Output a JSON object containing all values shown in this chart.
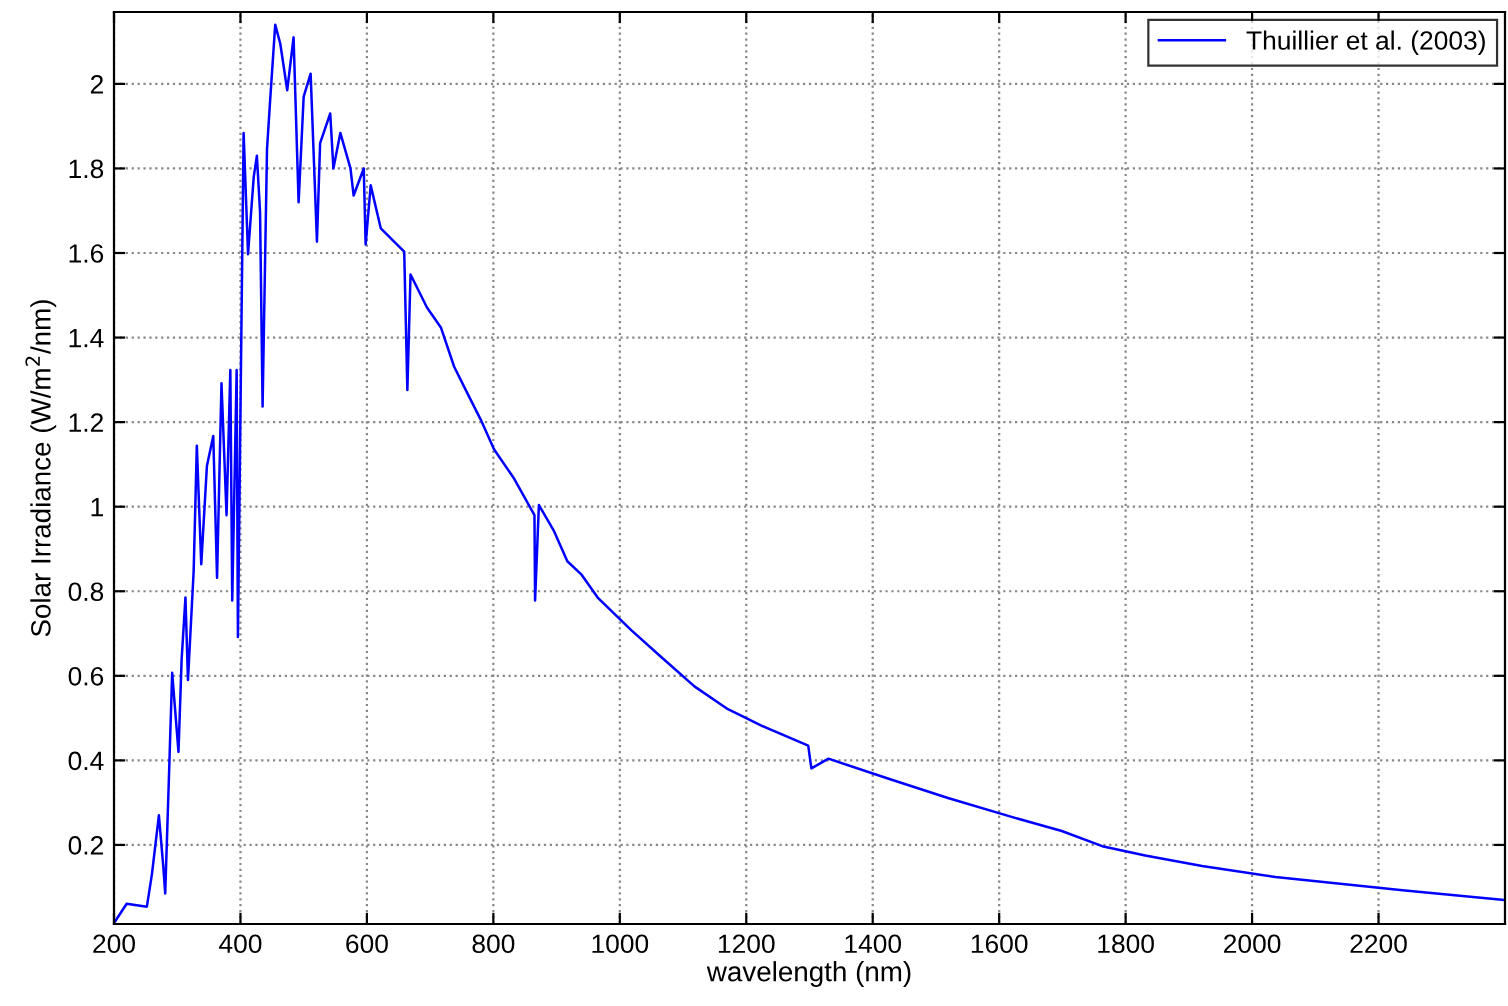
{
  "chart_data": {
    "type": "line",
    "xlabel": "wavelength (nm)",
    "ylabel": "Solar Irradiance (W/m$^{2}$/nm)",
    "x": [
      200,
      220,
      252,
      260,
      271,
      278,
      281,
      287,
      292,
      302,
      307,
      313,
      317,
      326,
      331,
      338,
      347,
      357,
      363,
      370,
      378,
      384,
      387,
      394,
      396,
      402,
      405,
      412,
      421,
      426,
      431,
      435,
      442,
      447,
      455,
      463,
      474,
      484,
      492,
      500,
      511,
      521,
      526,
      542,
      547,
      558,
      574,
      579,
      595,
      598,
      606,
      622,
      643,
      659,
      664,
      669,
      695,
      717,
      738,
      759,
      780,
      801,
      833,
      865,
      866,
      872,
      896,
      917,
      939,
      965,
      1018,
      1065,
      1118,
      1171,
      1224,
      1298,
      1303,
      1330,
      1424,
      1519,
      1625,
      1699,
      1763,
      1831,
      1921,
      2037,
      2238,
      2397
    ],
    "series": [
      {
        "name": "Thuillier et al. (2003)",
        "color": "#0000ff",
        "values": [
          0.015,
          0.061,
          0.054,
          0.131,
          0.27,
          0.148,
          0.085,
          0.365,
          0.607,
          0.42,
          0.64,
          0.785,
          0.59,
          0.848,
          1.144,
          0.864,
          1.097,
          1.167,
          0.832,
          1.292,
          0.98,
          1.323,
          0.778,
          1.323,
          0.692,
          1.486,
          1.884,
          1.597,
          1.78,
          1.83,
          1.697,
          1.237,
          1.845,
          1.962,
          2.14,
          2.095,
          1.985,
          2.11,
          1.72,
          1.97,
          2.024,
          1.627,
          1.86,
          1.93,
          1.8,
          1.884,
          1.8,
          1.736,
          1.8,
          1.62,
          1.76,
          1.658,
          1.627,
          1.603,
          1.276,
          1.549,
          1.471,
          1.424,
          1.331,
          1.268,
          1.206,
          1.136,
          1.066,
          0.98,
          0.778,
          1.004,
          0.942,
          0.871,
          0.84,
          0.785,
          0.708,
          0.645,
          0.575,
          0.521,
          0.482,
          0.435,
          0.381,
          0.404,
          0.357,
          0.311,
          0.264,
          0.233,
          0.197,
          0.175,
          0.15,
          0.124,
          0.093,
          0.07
        ]
      }
    ],
    "xlim": [
      200,
      2400
    ],
    "ylim": [
      0.013,
      2.17
    ],
    "xticks": [
      200,
      400,
      600,
      800,
      1000,
      1200,
      1400,
      1600,
      1800,
      2000,
      2200
    ],
    "yticks": [
      0.2,
      0.4,
      0.6,
      0.8,
      1,
      1.2,
      1.4,
      1.6,
      1.8,
      2
    ],
    "grid": true,
    "legend": "top right",
    "marker": "none",
    "line_style": "solid"
  }
}
